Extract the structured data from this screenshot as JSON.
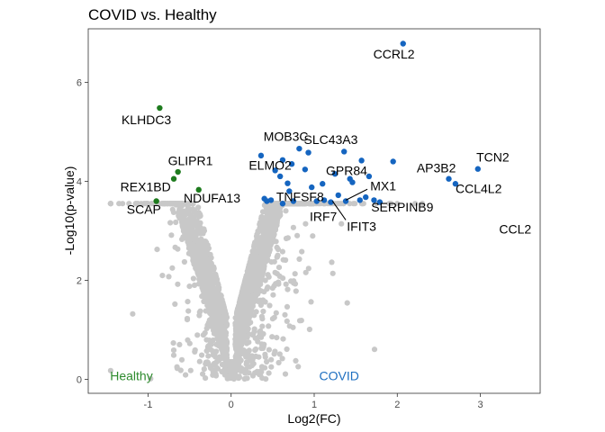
{
  "chart_data": {
    "type": "scatter",
    "title": "COVID vs. Healthy",
    "xlabel": "Log2(FC)",
    "ylabel": "-Log10(p-value)",
    "xlim": [
      -1.72,
      3.72
    ],
    "ylim": [
      -0.28,
      7.08
    ],
    "x_ticks": [
      -1,
      0,
      1,
      2,
      3
    ],
    "y_ticks": [
      0,
      2,
      4,
      6
    ],
    "grid": false,
    "colors": {
      "not_significant": "#c8c8c8",
      "down": "#1e7b1e",
      "up": "#1565c0",
      "healthy_label": "#2e8b2e",
      "covid_label": "#1e6fc0"
    },
    "group_labels": [
      {
        "text": "Healthy",
        "x": -1.2,
        "y": -0.02,
        "color": "#2e8b2e"
      },
      {
        "text": "COVID",
        "x": 1.3,
        "y": -0.02,
        "color": "#1e6fc0"
      }
    ],
    "significant_down": [
      {
        "x": -0.86,
        "y": 5.48
      },
      {
        "x": -0.64,
        "y": 4.19
      },
      {
        "x": -0.69,
        "y": 4.05
      },
      {
        "x": -0.39,
        "y": 3.83
      },
      {
        "x": -0.9,
        "y": 3.6
      }
    ],
    "significant_up": [
      {
        "x": 2.07,
        "y": 6.78
      },
      {
        "x": 0.82,
        "y": 4.66
      },
      {
        "x": 0.93,
        "y": 4.58
      },
      {
        "x": 1.36,
        "y": 4.6
      },
      {
        "x": 1.57,
        "y": 4.42
      },
      {
        "x": 0.36,
        "y": 4.52
      },
      {
        "x": 0.62,
        "y": 4.43
      },
      {
        "x": 0.73,
        "y": 4.35
      },
      {
        "x": 0.89,
        "y": 4.24
      },
      {
        "x": 1.95,
        "y": 4.4
      },
      {
        "x": 2.97,
        "y": 4.25
      },
      {
        "x": 0.53,
        "y": 4.22
      },
      {
        "x": 1.25,
        "y": 4.15
      },
      {
        "x": 1.43,
        "y": 4.05
      },
      {
        "x": 1.66,
        "y": 4.1
      },
      {
        "x": 2.62,
        "y": 4.05
      },
      {
        "x": 2.7,
        "y": 3.95
      },
      {
        "x": 0.68,
        "y": 3.96
      },
      {
        "x": 0.59,
        "y": 4.1
      },
      {
        "x": 1.1,
        "y": 3.95
      },
      {
        "x": 1.46,
        "y": 3.98
      },
      {
        "x": 0.97,
        "y": 3.88
      },
      {
        "x": 0.7,
        "y": 3.8
      },
      {
        "x": 1.29,
        "y": 3.72
      },
      {
        "x": 0.4,
        "y": 3.65
      },
      {
        "x": 0.43,
        "y": 3.6
      },
      {
        "x": 0.48,
        "y": 3.62
      },
      {
        "x": 0.62,
        "y": 3.55
      },
      {
        "x": 0.75,
        "y": 3.6
      },
      {
        "x": 1.03,
        "y": 3.6
      },
      {
        "x": 1.12,
        "y": 3.62
      },
      {
        "x": 1.2,
        "y": 3.58
      },
      {
        "x": 1.38,
        "y": 3.6
      },
      {
        "x": 1.55,
        "y": 3.62
      },
      {
        "x": 1.62,
        "y": 3.68
      },
      {
        "x": 1.72,
        "y": 3.62
      },
      {
        "x": 1.79,
        "y": 3.58
      }
    ],
    "not_significant_seed": 20240611,
    "not_significant_count": 3600,
    "annotations": [
      {
        "text": "CCRL2",
        "x": 1.96,
        "y": 6.48
      },
      {
        "text": "KLHDC3",
        "x": -1.02,
        "y": 5.15
      },
      {
        "text": "MOB3C",
        "x": 0.66,
        "y": 4.82
      },
      {
        "text": "SLC43A3",
        "x": 1.2,
        "y": 4.75
      },
      {
        "text": "GLIPR1",
        "x": -0.49,
        "y": 4.33
      },
      {
        "text": "ELMO2",
        "x": 0.47,
        "y": 4.24
      },
      {
        "text": "TCN2",
        "x": 3.15,
        "y": 4.4
      },
      {
        "text": "AP3B2",
        "x": 2.47,
        "y": 4.18
      },
      {
        "text": "GPR84",
        "x": 1.39,
        "y": 4.13
      },
      {
        "text": "MX1",
        "x": 1.83,
        "y": 3.82
      },
      {
        "text": "CCL4L2",
        "x": 2.98,
        "y": 3.76
      },
      {
        "text": "REX1BD",
        "x": -1.03,
        "y": 3.8
      },
      {
        "text": "NDUFA13",
        "x": -0.23,
        "y": 3.57
      },
      {
        "text": "TNFSF8",
        "x": 0.83,
        "y": 3.6
      },
      {
        "text": "SERPINB9",
        "x": 2.06,
        "y": 3.39
      },
      {
        "text": "SCAP",
        "x": -1.05,
        "y": 3.35
      },
      {
        "text": "IRF7",
        "x": 1.11,
        "y": 3.2
      },
      {
        "text": "IFIT3",
        "x": 1.57,
        "y": 3.0
      },
      {
        "text": "CCL2",
        "x": 3.42,
        "y": 2.95
      }
    ],
    "leader_lines": [
      {
        "x1": 1.38,
        "y1": 3.62,
        "x2": 1.64,
        "y2": 3.84
      },
      {
        "x1": 1.22,
        "y1": 3.6,
        "x2": 1.38,
        "y2": 3.22
      }
    ]
  }
}
